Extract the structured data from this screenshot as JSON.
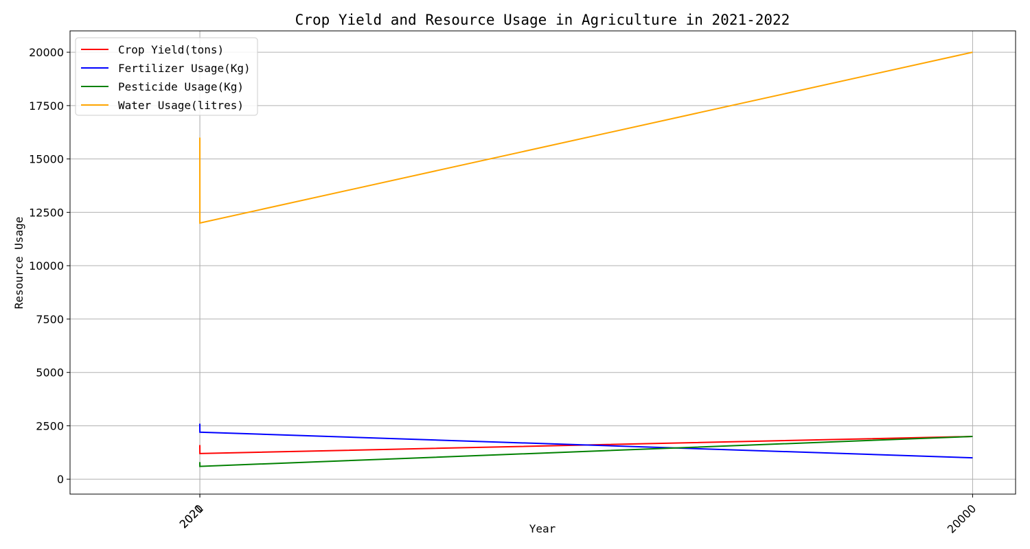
{
  "chart_data": {
    "type": "line",
    "title": "Crop Yield and Resource Usage in Agriculture in 2021-2022",
    "xlabel": "Year",
    "ylabel": "Resource Usage",
    "x": [
      2020,
      2021,
      20000
    ],
    "x_ticks": [
      2020,
      2021,
      20000
    ],
    "x_tick_labels": [
      "2020",
      "2021",
      "20000"
    ],
    "xlim": [
      -1000,
      21000
    ],
    "ylim": [
      -700,
      21000
    ],
    "y_ticks": [
      0,
      2500,
      5000,
      7500,
      10000,
      12500,
      15000,
      17500,
      20000
    ],
    "grid": true,
    "legend_position": "top-left",
    "series": [
      {
        "name": "Crop Yield(tons)",
        "color": "#ff0000",
        "values": [
          1600,
          1200,
          2000
        ]
      },
      {
        "name": "Fertilizer Usage(Kg)",
        "color": "#0000ff",
        "values": [
          2600,
          2200,
          1000
        ]
      },
      {
        "name": "Pesticide Usage(Kg)",
        "color": "#008000",
        "values": [
          800,
          600,
          2000
        ]
      },
      {
        "name": "Water Usage(litres)",
        "color": "#ffa500",
        "values": [
          16000,
          12000,
          20000
        ]
      }
    ]
  }
}
